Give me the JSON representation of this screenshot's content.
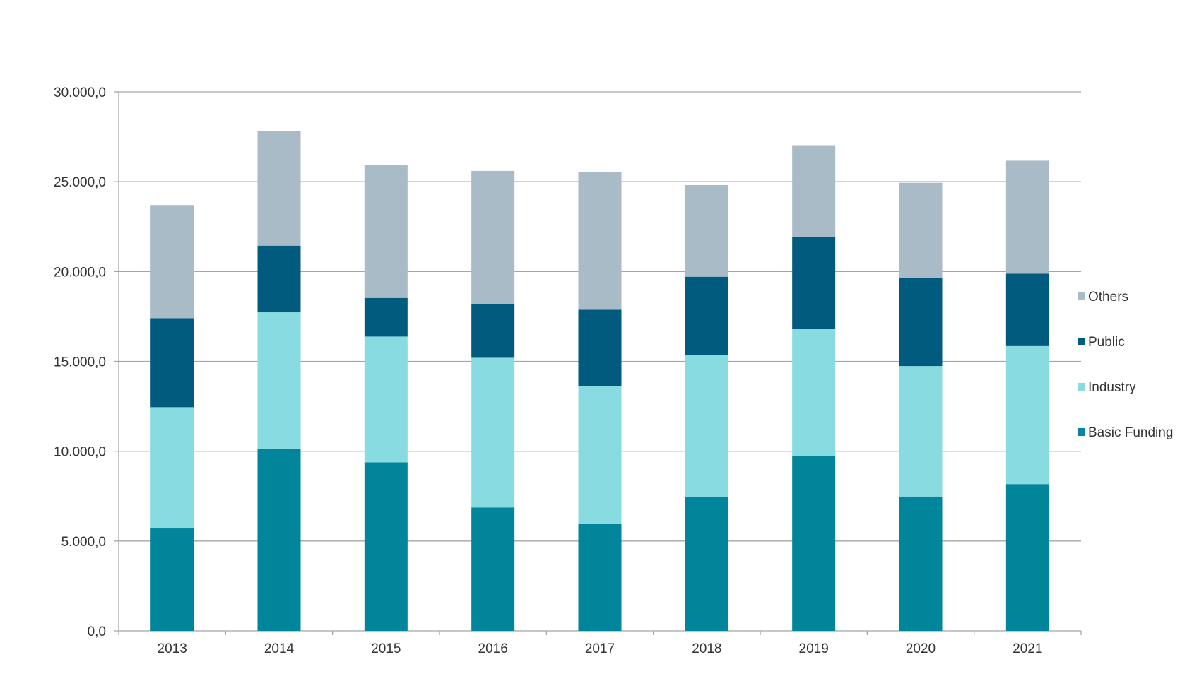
{
  "chart_data": {
    "type": "bar",
    "stacked": true,
    "title": "",
    "xlabel": "",
    "ylabel": "",
    "categories": [
      "2013",
      "2014",
      "2015",
      "2016",
      "2017",
      "2018",
      "2019",
      "2020",
      "2021"
    ],
    "series": [
      {
        "name": "Basic Funding",
        "color": "#00859a",
        "values": [
          5700,
          10150,
          9380,
          6870,
          5970,
          7440,
          9720,
          7480,
          8170
        ]
      },
      {
        "name": "Industry",
        "color": "#88dbe0",
        "values": [
          6750,
          7580,
          7000,
          8330,
          7640,
          7900,
          7100,
          7260,
          7680
        ]
      },
      {
        "name": "Public",
        "color": "#005b7f",
        "values": [
          4950,
          3710,
          2150,
          3010,
          4260,
          4370,
          5090,
          4920,
          4030
        ]
      },
      {
        "name": "Others",
        "color": "#a8bbc7",
        "values": [
          6300,
          6370,
          7380,
          7390,
          7680,
          5100,
          5120,
          5280,
          6290
        ]
      }
    ],
    "ylim": [
      0,
      30000
    ],
    "yticks": [
      0,
      5000,
      10000,
      15000,
      20000,
      25000,
      30000
    ],
    "ytick_labels": [
      "0,0",
      "5.000,0",
      "10.000,0",
      "15.000,0",
      "20.000,0",
      "25.000,0",
      "30.000,0"
    ],
    "grid": true,
    "legend_position": "right",
    "legend_order": [
      "Others",
      "Public",
      "Industry",
      "Basic Funding"
    ],
    "colors": {
      "gridline": "#a6a6a6",
      "axis": "#a6a6a6",
      "text": "#333333"
    }
  }
}
